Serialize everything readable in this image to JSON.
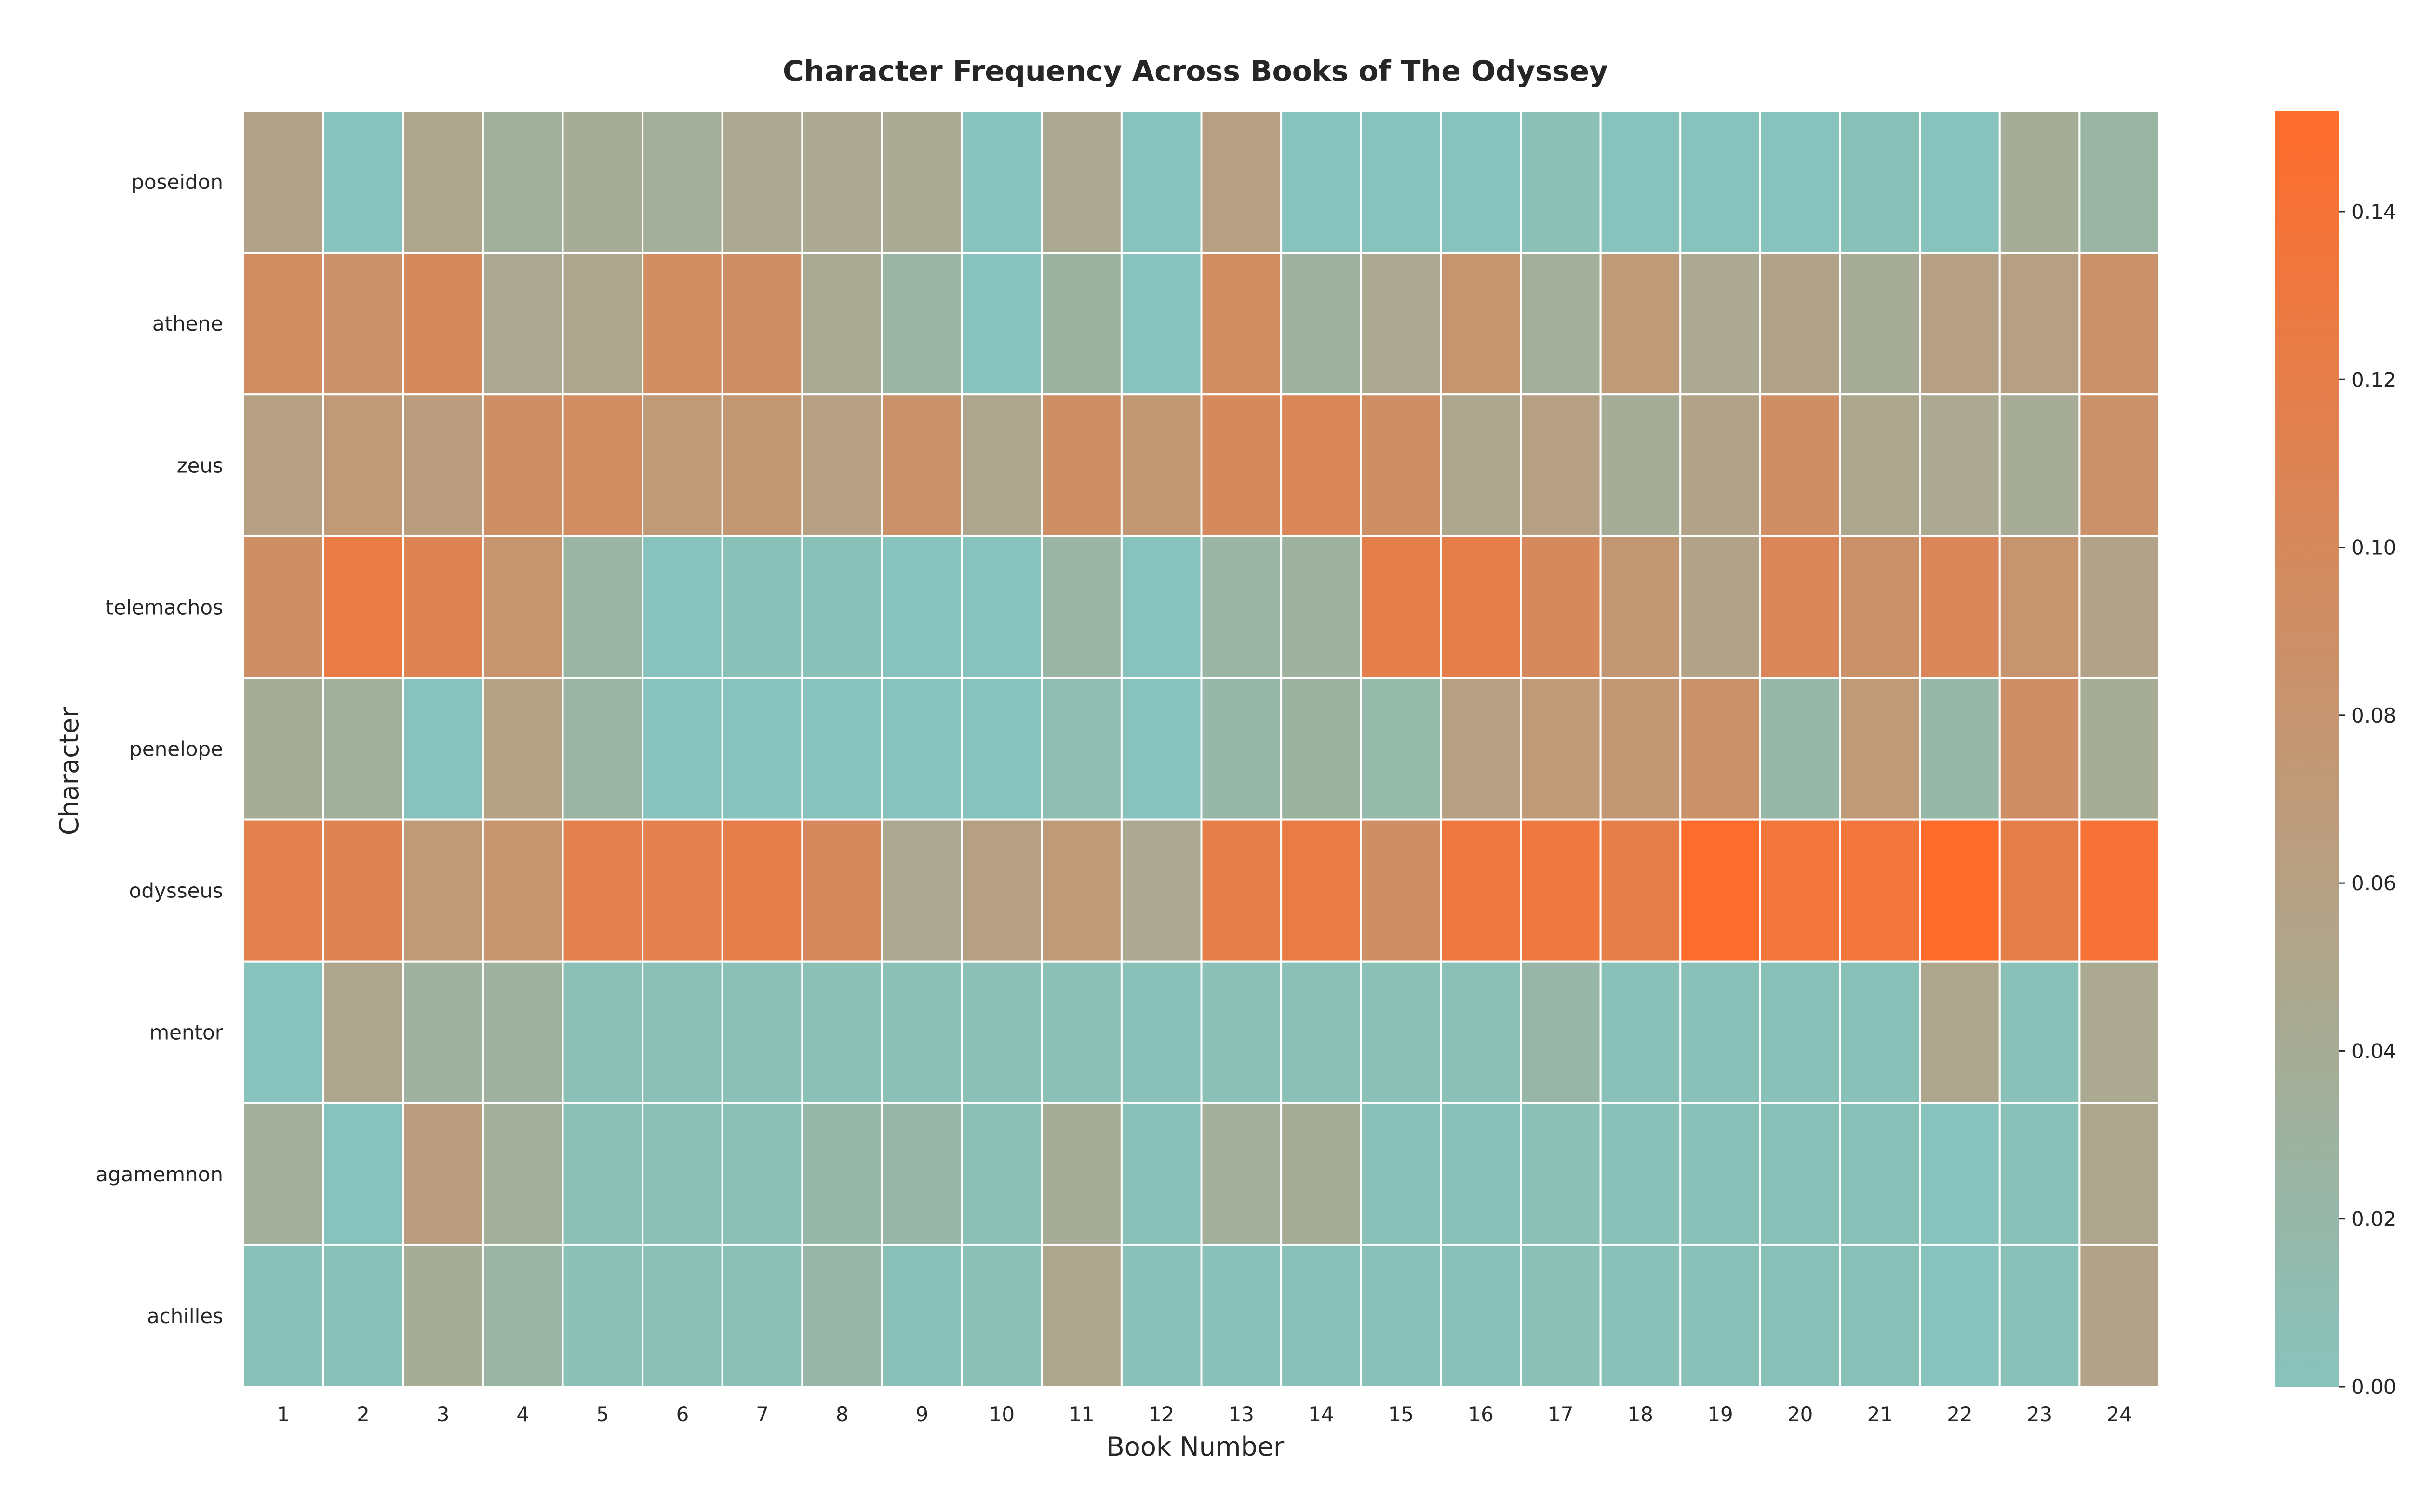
{
  "chart_data": {
    "type": "heatmap",
    "title": "Character Frequency Across Books of The Odyssey",
    "xlabel": "Book Number",
    "ylabel": "Character",
    "x_categories": [
      "1",
      "2",
      "3",
      "4",
      "5",
      "6",
      "7",
      "8",
      "9",
      "10",
      "11",
      "12",
      "13",
      "14",
      "15",
      "16",
      "17",
      "18",
      "19",
      "20",
      "21",
      "22",
      "23",
      "24"
    ],
    "y_categories": [
      "poseidon",
      "athene",
      "zeus",
      "telemachos",
      "penelope",
      "odysseus",
      "mentor",
      "agamemnon",
      "achilles"
    ],
    "values": [
      [
        0.055,
        0.0,
        0.05,
        0.033,
        0.04,
        0.035,
        0.045,
        0.045,
        0.043,
        0.0,
        0.045,
        0.0,
        0.06,
        0.0,
        0.0,
        0.0,
        0.005,
        0.0,
        0.0,
        0.0,
        0.003,
        0.0,
        0.038,
        0.025
      ],
      [
        0.095,
        0.085,
        0.1,
        0.045,
        0.05,
        0.095,
        0.09,
        0.043,
        0.025,
        0.0,
        0.028,
        0.0,
        0.095,
        0.03,
        0.045,
        0.08,
        0.035,
        0.07,
        0.045,
        0.055,
        0.04,
        0.06,
        0.06,
        0.085
      ],
      [
        0.06,
        0.072,
        0.065,
        0.09,
        0.095,
        0.07,
        0.075,
        0.06,
        0.085,
        0.05,
        0.09,
        0.075,
        0.1,
        0.105,
        0.09,
        0.048,
        0.06,
        0.038,
        0.055,
        0.092,
        0.048,
        0.045,
        0.04,
        0.085
      ],
      [
        0.09,
        0.125,
        0.11,
        0.08,
        0.025,
        0.0,
        0.003,
        0.003,
        0.0,
        0.0,
        0.025,
        0.0,
        0.025,
        0.03,
        0.118,
        0.12,
        0.1,
        0.075,
        0.055,
        0.105,
        0.085,
        0.105,
        0.08,
        0.055
      ],
      [
        0.04,
        0.032,
        0.0,
        0.058,
        0.025,
        0.0,
        0.0,
        0.0,
        0.0,
        0.0,
        0.01,
        0.0,
        0.02,
        0.028,
        0.018,
        0.06,
        0.07,
        0.075,
        0.085,
        0.02,
        0.07,
        0.02,
        0.09,
        0.04
      ],
      [
        0.115,
        0.11,
        0.07,
        0.08,
        0.115,
        0.115,
        0.12,
        0.1,
        0.045,
        0.06,
        0.07,
        0.045,
        0.12,
        0.125,
        0.09,
        0.13,
        0.13,
        0.12,
        0.15,
        0.135,
        0.135,
        0.152,
        0.12,
        0.14
      ],
      [
        0.0,
        0.05,
        0.03,
        0.03,
        0.005,
        0.005,
        0.005,
        0.005,
        0.005,
        0.005,
        0.005,
        0.003,
        0.005,
        0.005,
        0.005,
        0.005,
        0.022,
        0.003,
        0.003,
        0.003,
        0.003,
        0.05,
        0.003,
        0.045
      ],
      [
        0.035,
        0.0,
        0.065,
        0.035,
        0.005,
        0.005,
        0.005,
        0.02,
        0.022,
        0.005,
        0.04,
        0.003,
        0.035,
        0.04,
        0.003,
        0.003,
        0.005,
        0.003,
        0.003,
        0.003,
        0.003,
        0.0,
        0.003,
        0.05
      ],
      [
        0.003,
        0.003,
        0.04,
        0.025,
        0.005,
        0.005,
        0.005,
        0.022,
        0.003,
        0.005,
        0.05,
        0.003,
        0.003,
        0.003,
        0.003,
        0.003,
        0.005,
        0.003,
        0.003,
        0.003,
        0.003,
        0.0,
        0.003,
        0.055
      ]
    ],
    "colorbar": {
      "min": 0.0,
      "max": 0.152,
      "ticks": [
        "0.00",
        "0.02",
        "0.04",
        "0.06",
        "0.08",
        "0.10",
        "0.12",
        "0.14"
      ],
      "low_color": "#87C3BC",
      "high_color": "#FF6B2B"
    },
    "grid_line_color": "#ffffff"
  }
}
